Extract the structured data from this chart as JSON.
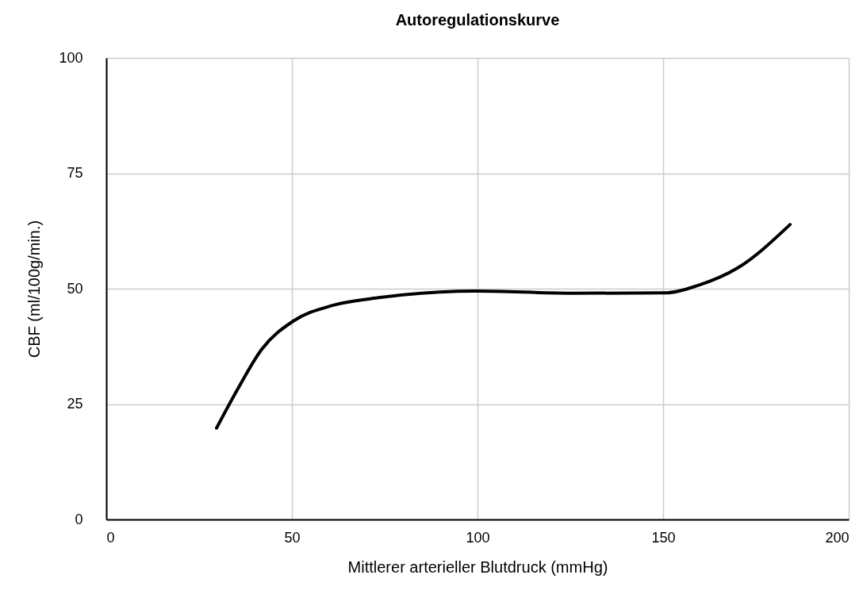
{
  "chart_data": {
    "type": "line",
    "title": "Autoregulationskurve",
    "xlabel": "Mittlerer arterieller Blutdruck (mmHg)",
    "ylabel": "CBF (ml/100g/min.)",
    "x": [
      29.7,
      35.5,
      41.9,
      50.4,
      61.1,
      73.9,
      99.6,
      125.2,
      150.9,
      159.4,
      170.1,
      184.2
    ],
    "series": [
      {
        "color": "#000000",
        "values": [
          19.8,
          28.4,
          36.9,
          43.0,
          46.4,
          48.1,
          49.5,
          49.0,
          49.1,
          50.7,
          54.5,
          63.9
        ]
      }
    ],
    "xlim": [
      0,
      200
    ],
    "xticks": [
      0,
      50,
      100,
      150,
      200
    ],
    "ylim": [
      0,
      100
    ],
    "yticks": [
      0,
      25,
      50,
      75,
      100
    ],
    "grid": true,
    "line_style": "solid"
  }
}
